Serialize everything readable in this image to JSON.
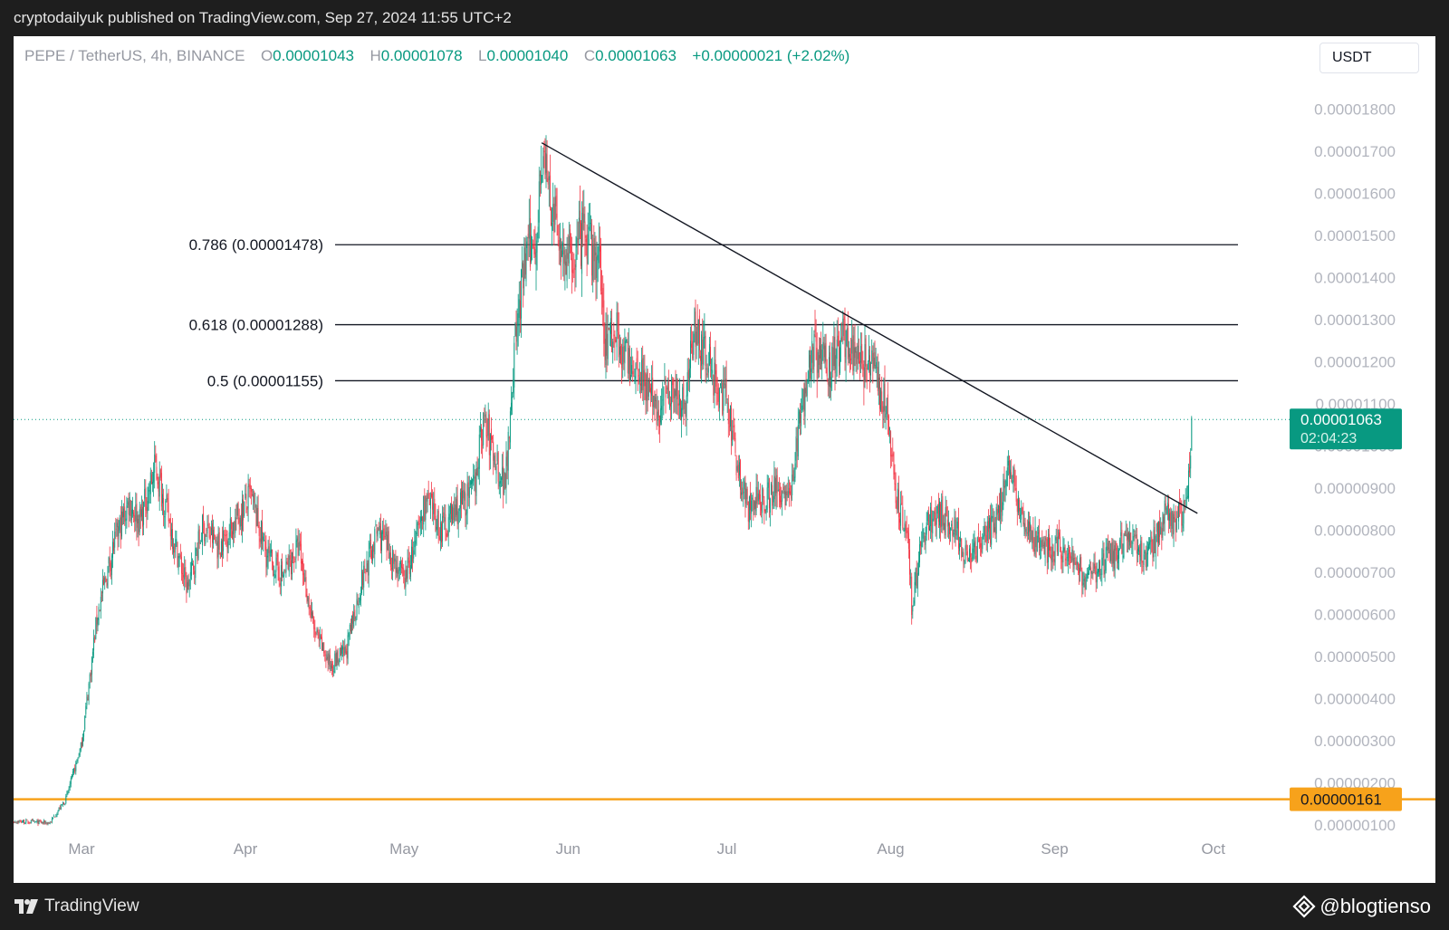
{
  "header": {
    "published_text": "cryptodailyuk published on TradingView.com, Sep 27, 2024 11:55 UTC+2"
  },
  "legend": {
    "symbol_text": "PEPE / TetherUS, 4h, BINANCE",
    "open_label": "O",
    "open_value": "0.00001043",
    "high_label": "H",
    "high_value": "0.00001078",
    "low_label": "L",
    "low_value": "0.00001040",
    "close_label": "C",
    "close_value": "0.00001063",
    "change_text": "+0.00000021 (+2.02%)"
  },
  "currency_button": {
    "label": "USDT"
  },
  "footer": {
    "brand": "TradingView",
    "watermark": "@blogtienso"
  },
  "colors": {
    "up": "#089981",
    "down": "#f23645",
    "support": "#f7a21b",
    "price_tag": "#089981",
    "axis_text": "#b2b5be",
    "lines": "#131722"
  },
  "chart_data": {
    "type": "candlestick",
    "interval": "4h",
    "x_axis_ticks": [
      "Mar",
      "Apr",
      "May",
      "Jun",
      "Jul",
      "Aug",
      "Sep",
      "Oct"
    ],
    "y_axis_ticks": [
      "0.00000100",
      "0.00000200",
      "0.00000300",
      "0.00000400",
      "0.00000500",
      "0.00000600",
      "0.00000700",
      "0.00000800",
      "0.00000900",
      "0.00001000",
      "0.00001100",
      "0.00001200",
      "0.00001300",
      "0.00001400",
      "0.00001500",
      "0.00001600",
      "0.00001700",
      "0.00001800"
    ],
    "ylim": [
      9e-07,
      1.9e-05
    ],
    "price_path": [
      {
        "date": "2024-02-15",
        "price": 1.1e-06
      },
      {
        "date": "2024-02-24",
        "price": 1.05e-06
      },
      {
        "date": "2024-02-27",
        "price": 1.6e-06
      },
      {
        "date": "2024-03-01",
        "price": 2.9e-06
      },
      {
        "date": "2024-03-04",
        "price": 6e-06
      },
      {
        "date": "2024-03-07",
        "price": 7.6e-06
      },
      {
        "date": "2024-03-10",
        "price": 8.7e-06
      },
      {
        "date": "2024-03-12",
        "price": 8.2e-06
      },
      {
        "date": "2024-03-15",
        "price": 9.5e-06
      },
      {
        "date": "2024-03-18",
        "price": 8e-06
      },
      {
        "date": "2024-03-21",
        "price": 6.6e-06
      },
      {
        "date": "2024-03-24",
        "price": 8.1e-06
      },
      {
        "date": "2024-03-27",
        "price": 7.6e-06
      },
      {
        "date": "2024-03-30",
        "price": 8.2e-06
      },
      {
        "date": "2024-04-02",
        "price": 8.8e-06
      },
      {
        "date": "2024-04-05",
        "price": 7.4e-06
      },
      {
        "date": "2024-04-08",
        "price": 6.9e-06
      },
      {
        "date": "2024-04-11",
        "price": 7.6e-06
      },
      {
        "date": "2024-04-14",
        "price": 5.6e-06
      },
      {
        "date": "2024-04-17",
        "price": 4.8e-06
      },
      {
        "date": "2024-04-20",
        "price": 5.1e-06
      },
      {
        "date": "2024-04-23",
        "price": 6.8e-06
      },
      {
        "date": "2024-04-26",
        "price": 8e-06
      },
      {
        "date": "2024-04-29",
        "price": 7.3e-06
      },
      {
        "date": "2024-05-01",
        "price": 6.8e-06
      },
      {
        "date": "2024-05-03",
        "price": 7.6e-06
      },
      {
        "date": "2024-05-05",
        "price": 8.7e-06
      },
      {
        "date": "2024-05-08",
        "price": 8e-06
      },
      {
        "date": "2024-05-11",
        "price": 8.5e-06
      },
      {
        "date": "2024-05-14",
        "price": 8.9e-06
      },
      {
        "date": "2024-05-16",
        "price": 1.06e-05
      },
      {
        "date": "2024-05-18",
        "price": 9.8e-06
      },
      {
        "date": "2024-05-20",
        "price": 9.1e-06
      },
      {
        "date": "2024-05-22",
        "price": 1.25e-05
      },
      {
        "date": "2024-05-24",
        "price": 1.45e-05
      },
      {
        "date": "2024-05-26",
        "price": 1.5e-05
      },
      {
        "date": "2024-05-27",
        "price": 1.71e-05
      },
      {
        "date": "2024-05-29",
        "price": 1.55e-05
      },
      {
        "date": "2024-06-01",
        "price": 1.43e-05
      },
      {
        "date": "2024-06-04",
        "price": 1.5e-05
      },
      {
        "date": "2024-06-07",
        "price": 1.42e-05
      },
      {
        "date": "2024-06-08",
        "price": 1.25e-05
      },
      {
        "date": "2024-06-10",
        "price": 1.28e-05
      },
      {
        "date": "2024-06-12",
        "price": 1.2e-05
      },
      {
        "date": "2024-06-15",
        "price": 1.18e-05
      },
      {
        "date": "2024-06-18",
        "price": 1.07e-05
      },
      {
        "date": "2024-06-20",
        "price": 1.15e-05
      },
      {
        "date": "2024-06-23",
        "price": 1.1e-05
      },
      {
        "date": "2024-06-25",
        "price": 1.29e-05
      },
      {
        "date": "2024-06-28",
        "price": 1.18e-05
      },
      {
        "date": "2024-07-01",
        "price": 1.1e-05
      },
      {
        "date": "2024-07-03",
        "price": 9.6e-06
      },
      {
        "date": "2024-07-05",
        "price": 8.5e-06
      },
      {
        "date": "2024-07-08",
        "price": 8.8e-06
      },
      {
        "date": "2024-07-11",
        "price": 9e-06
      },
      {
        "date": "2024-07-13",
        "price": 8.8e-06
      },
      {
        "date": "2024-07-15",
        "price": 1.08e-05
      },
      {
        "date": "2024-07-17",
        "price": 1.23e-05
      },
      {
        "date": "2024-07-20",
        "price": 1.18e-05
      },
      {
        "date": "2024-07-23",
        "price": 1.26e-05
      },
      {
        "date": "2024-07-26",
        "price": 1.2e-05
      },
      {
        "date": "2024-07-29",
        "price": 1.17e-05
      },
      {
        "date": "2024-07-31",
        "price": 1.1e-05
      },
      {
        "date": "2024-08-02",
        "price": 8.8e-06
      },
      {
        "date": "2024-08-04",
        "price": 8e-06
      },
      {
        "date": "2024-08-05",
        "price": 6.2e-06
      },
      {
        "date": "2024-08-07",
        "price": 7.9e-06
      },
      {
        "date": "2024-08-10",
        "price": 8.5e-06
      },
      {
        "date": "2024-08-13",
        "price": 8e-06
      },
      {
        "date": "2024-08-16",
        "price": 7.3e-06
      },
      {
        "date": "2024-08-19",
        "price": 7.8e-06
      },
      {
        "date": "2024-08-21",
        "price": 8.2e-06
      },
      {
        "date": "2024-08-23",
        "price": 9.5e-06
      },
      {
        "date": "2024-08-25",
        "price": 8.8e-06
      },
      {
        "date": "2024-08-27",
        "price": 7.9e-06
      },
      {
        "date": "2024-08-30",
        "price": 7.5e-06
      },
      {
        "date": "2024-09-02",
        "price": 7.6e-06
      },
      {
        "date": "2024-09-05",
        "price": 7.2e-06
      },
      {
        "date": "2024-09-07",
        "price": 6.8e-06
      },
      {
        "date": "2024-09-10",
        "price": 7.2e-06
      },
      {
        "date": "2024-09-13",
        "price": 7.5e-06
      },
      {
        "date": "2024-09-15",
        "price": 7.9e-06
      },
      {
        "date": "2024-09-18",
        "price": 7.3e-06
      },
      {
        "date": "2024-09-20",
        "price": 7.8e-06
      },
      {
        "date": "2024-09-22",
        "price": 8.4e-06
      },
      {
        "date": "2024-09-24",
        "price": 8.2e-06
      },
      {
        "date": "2024-09-26",
        "price": 8.6e-06
      },
      {
        "date": "2024-09-27",
        "price": 1.063e-05
      }
    ],
    "fib_levels": [
      {
        "label": "0.786 (0.00001478)",
        "value": 1.478e-05
      },
      {
        "label": "0.618 (0.00001288)",
        "value": 1.288e-05
      },
      {
        "label": "0.5 (0.00001155)",
        "value": 1.155e-05
      }
    ],
    "trendline": {
      "from": {
        "date": "2024-05-27",
        "price": 1.72e-05
      },
      "to": {
        "date": "2024-09-28",
        "price": 8.4e-06
      }
    },
    "support_line": {
      "value": 1.61e-06,
      "label": "0.00000161"
    },
    "current_price": {
      "value": 1.063e-05,
      "label": "0.00001063",
      "countdown": "02:04:23"
    }
  }
}
